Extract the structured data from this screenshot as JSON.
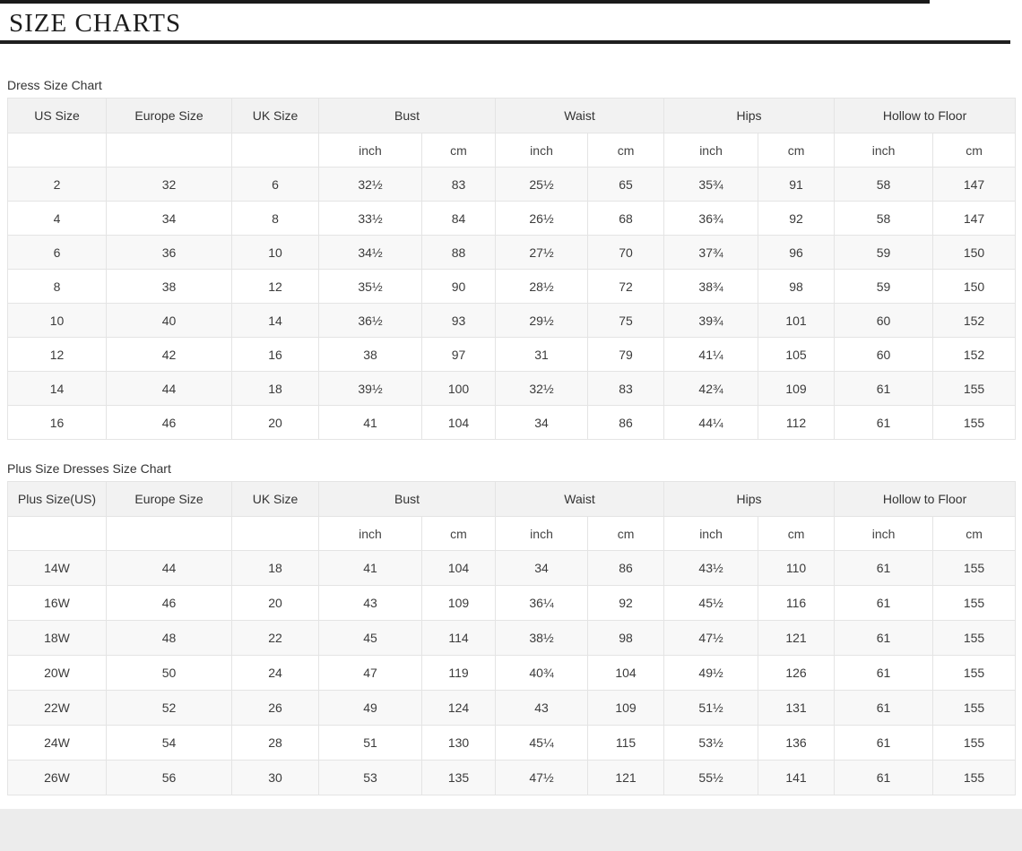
{
  "title": "SIZE CHARTS",
  "units": {
    "inch": "inch",
    "cm": "cm"
  },
  "dress_chart": {
    "label": "Dress Size Chart",
    "size_columns": [
      "US Size",
      "Europe Size",
      "UK Size"
    ],
    "measure_columns": [
      "Bust",
      "Waist",
      "Hips",
      "Hollow to Floor"
    ],
    "rows": [
      [
        "2",
        "32",
        "6",
        "32½",
        "83",
        "25½",
        "65",
        "35¾",
        "91",
        "58",
        "147"
      ],
      [
        "4",
        "34",
        "8",
        "33½",
        "84",
        "26½",
        "68",
        "36¾",
        "92",
        "58",
        "147"
      ],
      [
        "6",
        "36",
        "10",
        "34½",
        "88",
        "27½",
        "70",
        "37¾",
        "96",
        "59",
        "150"
      ],
      [
        "8",
        "38",
        "12",
        "35½",
        "90",
        "28½",
        "72",
        "38¾",
        "98",
        "59",
        "150"
      ],
      [
        "10",
        "40",
        "14",
        "36½",
        "93",
        "29½",
        "75",
        "39¾",
        "101",
        "60",
        "152"
      ],
      [
        "12",
        "42",
        "16",
        "38",
        "97",
        "31",
        "79",
        "41¼",
        "105",
        "60",
        "152"
      ],
      [
        "14",
        "44",
        "18",
        "39½",
        "100",
        "32½",
        "83",
        "42¾",
        "109",
        "61",
        "155"
      ],
      [
        "16",
        "46",
        "20",
        "41",
        "104",
        "34",
        "86",
        "44¼",
        "112",
        "61",
        "155"
      ]
    ]
  },
  "plus_chart": {
    "label": "Plus Size Dresses Size Chart",
    "size_columns": [
      "Plus Size(US)",
      "Europe Size",
      "UK Size"
    ],
    "measure_columns": [
      "Bust",
      "Waist",
      "Hips",
      "Hollow to Floor"
    ],
    "rows": [
      [
        "14W",
        "44",
        "18",
        "41",
        "104",
        "34",
        "86",
        "43½",
        "110",
        "61",
        "155"
      ],
      [
        "16W",
        "46",
        "20",
        "43",
        "109",
        "36¼",
        "92",
        "45½",
        "116",
        "61",
        "155"
      ],
      [
        "18W",
        "48",
        "22",
        "45",
        "114",
        "38½",
        "98",
        "47½",
        "121",
        "61",
        "155"
      ],
      [
        "20W",
        "50",
        "24",
        "47",
        "119",
        "40¾",
        "104",
        "49½",
        "126",
        "61",
        "155"
      ],
      [
        "22W",
        "52",
        "26",
        "49",
        "124",
        "43",
        "109",
        "51½",
        "131",
        "61",
        "155"
      ],
      [
        "24W",
        "54",
        "28",
        "51",
        "130",
        "45¼",
        "115",
        "53½",
        "136",
        "61",
        "155"
      ],
      [
        "26W",
        "56",
        "30",
        "53",
        "135",
        "47½",
        "121",
        "55½",
        "141",
        "61",
        "155"
      ]
    ]
  },
  "colors": {
    "rule": "#1f1f1f",
    "header_bg": "#f2f2f2",
    "stripe_bg": "#f8f8f8",
    "border": "#e4e4e4",
    "footer_band": "#ececec"
  }
}
